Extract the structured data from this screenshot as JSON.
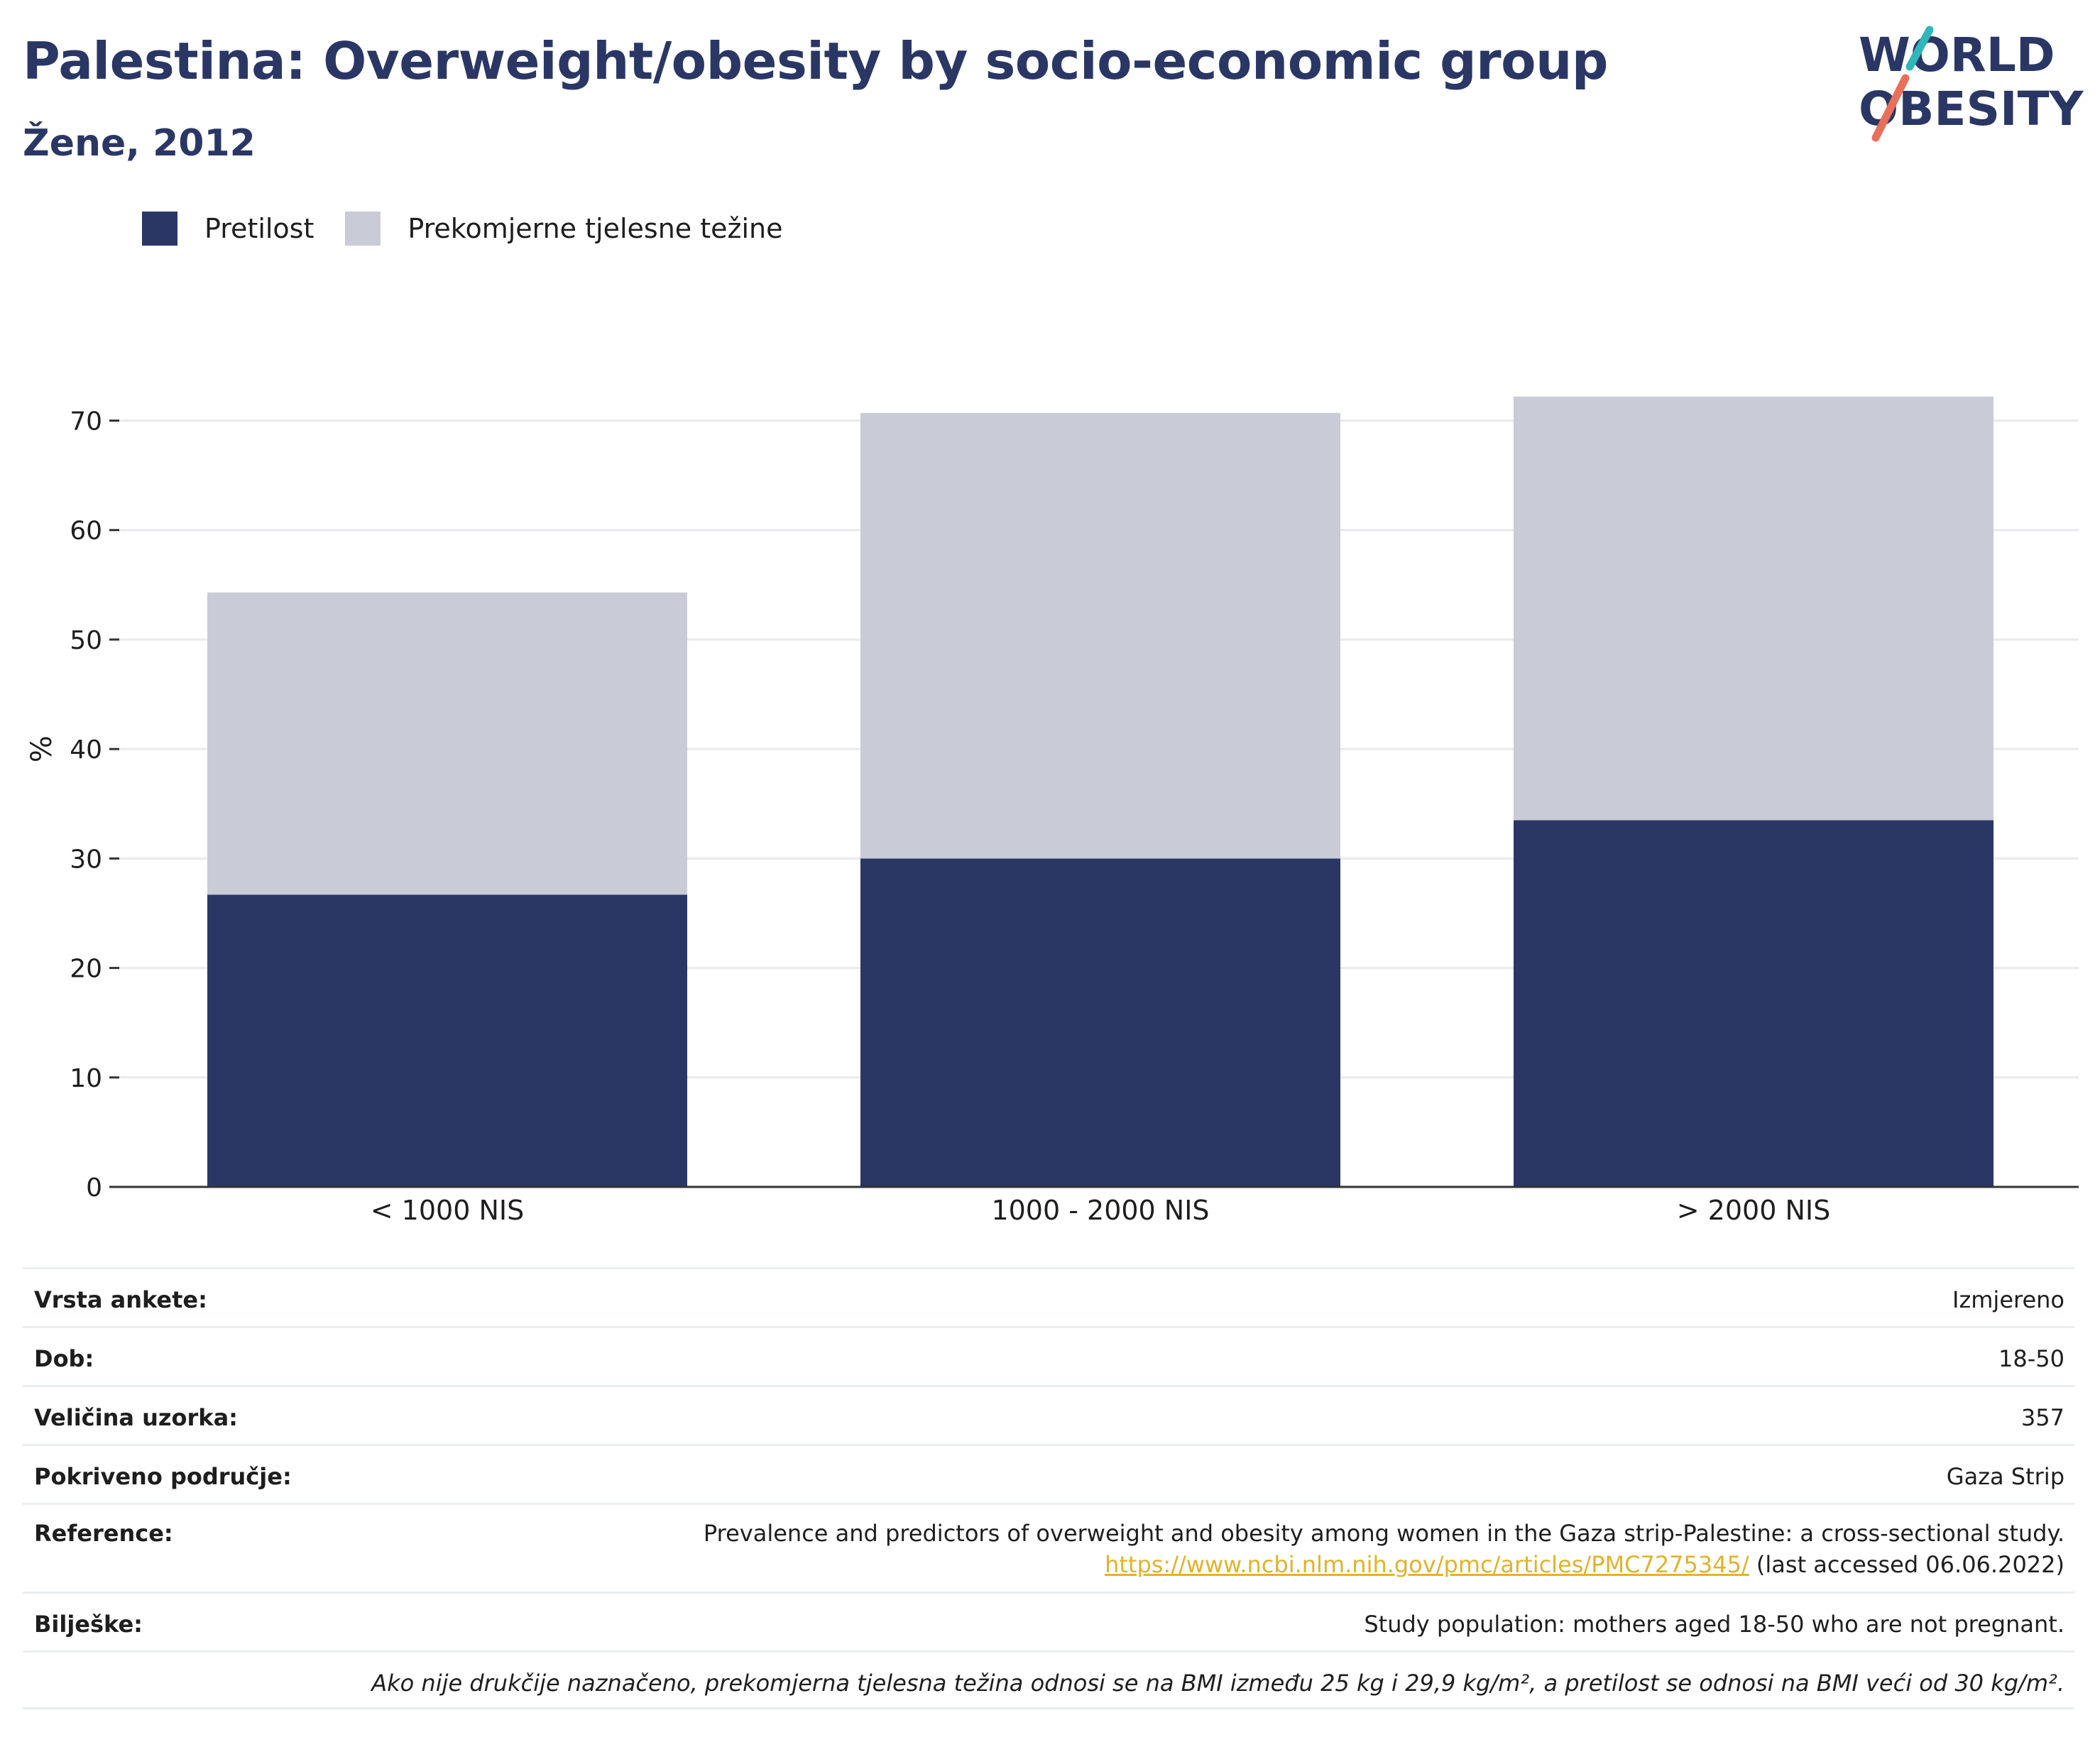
{
  "header": {
    "title": "Palestina: Overweight/obesity by socio-economic group",
    "subtitle": "Žene, 2012"
  },
  "logo": {
    "line1": "WORLD",
    "line2": "OBESITY",
    "colors": {
      "text": "#2a3765",
      "teal": "#2fb7b9",
      "coral": "#e8705a"
    }
  },
  "legend": [
    {
      "label": "Pretilost",
      "color": "#2a3765"
    },
    {
      "label": "Prekomjerne tjelesne težine",
      "color": "#c9cbd6"
    }
  ],
  "chart_data": {
    "type": "bar",
    "stacked": true,
    "categories": [
      "< 1000 NIS",
      "1000 - 2000 NIS",
      "> 2000 NIS"
    ],
    "series": [
      {
        "name": "Pretilost",
        "values": [
          26.7,
          30.0,
          33.5
        ],
        "color": "#2a3765"
      },
      {
        "name": "Prekomjerne tjelesne težine",
        "values": [
          27.6,
          40.7,
          38.7
        ],
        "color": "#c9cbd6"
      }
    ],
    "ylabel": "%",
    "yticks": [
      0,
      10,
      20,
      30,
      40,
      50,
      60,
      70
    ],
    "ylim": [
      0,
      76
    ],
    "grid": true,
    "legend_position": "top-left"
  },
  "info": {
    "survey_label": "Vrsta ankete:",
    "survey_value": "Izmjereno",
    "age_label": "Dob:",
    "age_value": "18-50",
    "sample_label": "Veličina uzorka:",
    "sample_value": "357",
    "area_label": "Pokriveno područje:",
    "area_value": "Gaza Strip",
    "reference_label": "Reference:",
    "reference_text": "Prevalence and predictors of overweight and obesity among women in the Gaza strip-Palestine: a cross-sectional study.",
    "reference_link": "https://www.ncbi.nlm.nih.gov/pmc/articles/PMC7275345/",
    "reference_accessed": "(last accessed 06.06.2022)",
    "notes_label": "Bilješke:",
    "notes_value": "Study population: mothers aged 18-50 who are not pregnant.",
    "footnote": "Ako nije drukčije naznačeno, prekomjerna tjelesna težina odnosi se na BMI između 25 kg i 29,9 kg/m², a pretilost se odnosi na BMI veći od 30 kg/m²."
  }
}
